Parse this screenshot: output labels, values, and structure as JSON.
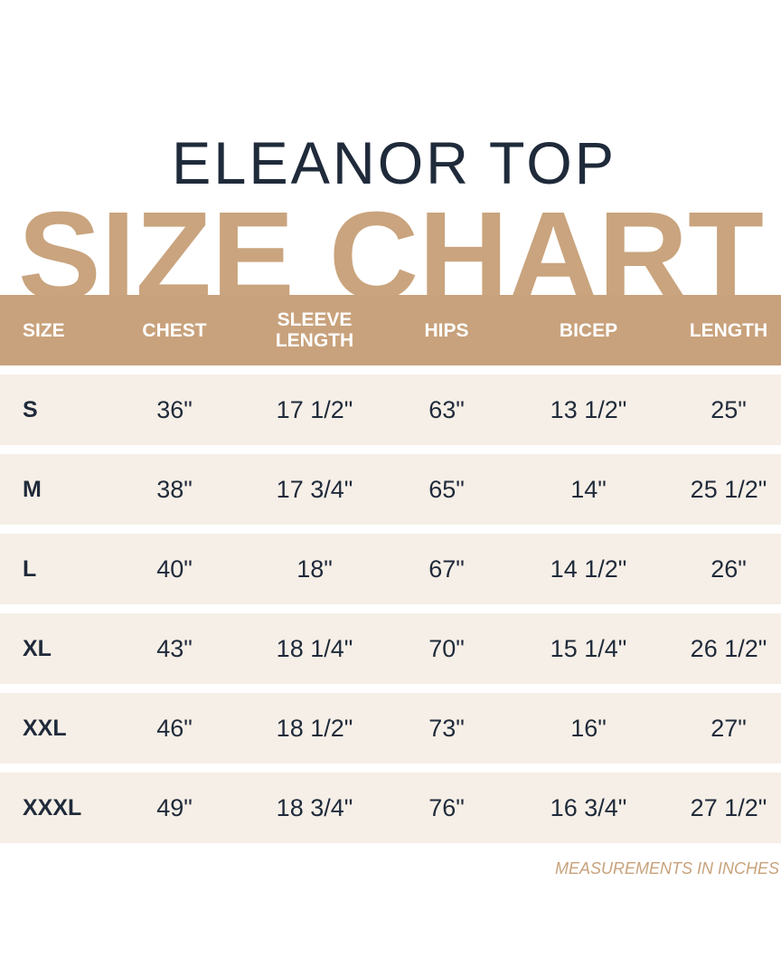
{
  "header": {
    "title": "ELEANOR TOP",
    "subtitle": "SIZE CHART"
  },
  "table": {
    "columns": [
      "SIZE",
      "CHEST",
      "SLEEVE LENGTH",
      "HIPS",
      "BICEP",
      "LENGTH"
    ],
    "rows": [
      [
        "S",
        "36\"",
        "17 1/2\"",
        "63\"",
        "13 1/2\"",
        "25\""
      ],
      [
        "M",
        "38\"",
        "17 3/4\"",
        "65\"",
        "14\"",
        "25 1/2\""
      ],
      [
        "L",
        "40\"",
        "18\"",
        "67\"",
        "14 1/2\"",
        "26\""
      ],
      [
        "XL",
        "43\"",
        "18 1/4\"",
        "70\"",
        "15 1/4\"",
        "26 1/2\""
      ],
      [
        "XXL",
        "46\"",
        "18 1/2\"",
        "73\"",
        "16\"",
        "27\""
      ],
      [
        "XXXL",
        "49\"",
        "18 3/4\"",
        "76\"",
        "16 3/4\"",
        "27 1/2\""
      ]
    ]
  },
  "footer": {
    "note": "MEASUREMENTS IN INCHES"
  }
}
